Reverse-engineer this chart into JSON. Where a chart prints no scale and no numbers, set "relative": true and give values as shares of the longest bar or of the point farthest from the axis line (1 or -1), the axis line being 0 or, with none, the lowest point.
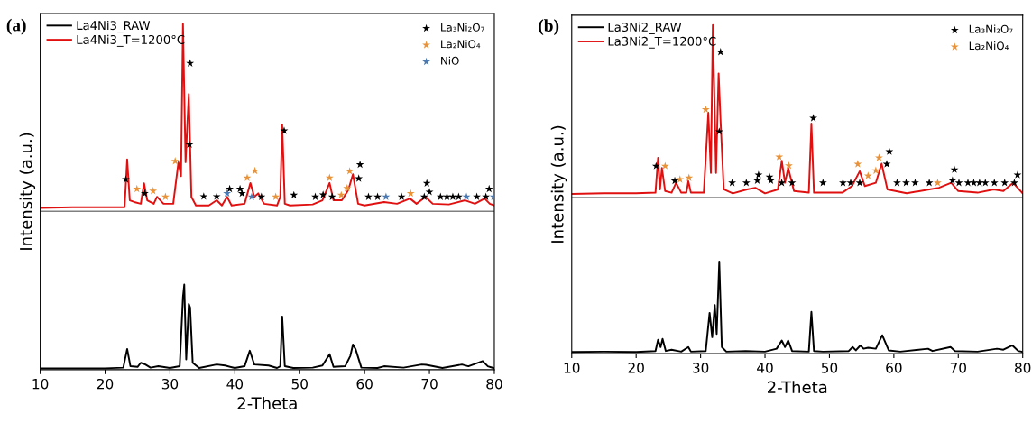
{
  "chart_data": [
    {
      "type": "line",
      "title": "(a)",
      "xlabel": "2-Theta",
      "ylabel": "Intensity (a.u.)",
      "relative": true,
      "xlim": [
        10,
        80
      ],
      "xticks": [
        10,
        20,
        30,
        40,
        50,
        60,
        70,
        80
      ],
      "tick_labels": "x",
      "legend": "top left",
      "grid": false,
      "ref_lines": [
        {
          "axis": "y",
          "value": 0.458,
          "color": "#808080"
        }
      ],
      "series": [
        {
          "name": "La4Ni3_RAW",
          "color": "#000000",
          "marker": "none",
          "x": [
            10,
            15,
            20,
            22.8,
            23.4,
            23.9,
            25.0,
            25.5,
            26.2,
            27,
            28.2,
            30,
            31.5,
            32.0,
            32.2,
            32.5,
            32.9,
            33.1,
            33.5,
            34.5,
            37.2,
            38.5,
            40,
            41.5,
            42.3,
            43,
            45.2,
            46.5,
            47.0,
            47.3,
            47.7,
            49,
            52,
            53.5,
            54.6,
            55.2,
            57,
            57.8,
            58.2,
            58.6,
            59.5,
            62,
            63,
            66,
            68.8,
            69.5,
            72,
            75,
            76,
            78.2,
            79,
            80
          ],
          "values": [
            0.004,
            0.004,
            0.004,
            0.006,
            0.06,
            0.01,
            0.008,
            0.02,
            0.015,
            0.006,
            0.01,
            0.005,
            0.01,
            0.21,
            0.246,
            0.03,
            0.19,
            0.18,
            0.02,
            0.005,
            0.015,
            0.012,
            0.005,
            0.01,
            0.055,
            0.015,
            0.012,
            0.005,
            0.01,
            0.154,
            0.01,
            0.005,
            0.006,
            0.012,
            0.045,
            0.008,
            0.01,
            0.04,
            0.073,
            0.06,
            0.006,
            0.005,
            0.01,
            0.006,
            0.015,
            0.014,
            0.005,
            0.015,
            0.01,
            0.025,
            0.01,
            0.004
          ]
        },
        {
          "name": "La4Ni3_T=1200°C",
          "color": "#e01010",
          "marker": "none",
          "x": [
            10,
            15,
            20,
            23.0,
            23.4,
            23.8,
            24.5,
            25.5,
            26.0,
            26.5,
            27.5,
            28.0,
            29.0,
            30.5,
            31.3,
            31.7,
            32.0,
            32.4,
            32.9,
            33.3,
            34,
            36,
            37.2,
            38,
            38.8,
            39.5,
            41.5,
            42.4,
            43,
            43.6,
            44.5,
            46.5,
            47.0,
            47.3,
            47.7,
            48.5,
            52,
            53.5,
            54.6,
            55.2,
            56.5,
            57.5,
            58.2,
            59,
            60,
            63,
            65,
            67,
            68,
            69.4,
            70.5,
            73,
            75.5,
            77,
            78.5,
            79.3,
            80
          ],
          "values": [
            0.468,
            0.47,
            0.47,
            0.47,
            0.608,
            0.49,
            0.485,
            0.48,
            0.539,
            0.49,
            0.48,
            0.5,
            0.48,
            0.48,
            0.6,
            0.56,
            1.0,
            0.6,
            0.797,
            0.5,
            0.475,
            0.475,
            0.49,
            0.475,
            0.5,
            0.475,
            0.48,
            0.54,
            0.5,
            0.51,
            0.48,
            0.475,
            0.5,
            0.709,
            0.48,
            0.475,
            0.478,
            0.49,
            0.54,
            0.49,
            0.49,
            0.52,
            0.565,
            0.48,
            0.475,
            0.485,
            0.48,
            0.495,
            0.48,
            0.5,
            0.48,
            0.478,
            0.49,
            0.48,
            0.495,
            0.48,
            0.475
          ]
        },
        {
          "name": "La₃Ni₂O₇",
          "color": "#000000",
          "type": "scatter",
          "marker": "star",
          "x": [
            23.2,
            26.1,
            33.1,
            33.0,
            47.6,
            35.2,
            37.2,
            39.2,
            40.8,
            41.1,
            44.1,
            49.1,
            52.4,
            53.6,
            55.0,
            59.3,
            59.1,
            60.6,
            62.0,
            65.7,
            69.2,
            69.6,
            70.0,
            71.7,
            72.7,
            73.6,
            74.5,
            77.3,
            78.7,
            79.2
          ],
          "values": [
            0.55,
            0.51,
            0.886,
            0.651,
            0.691,
            0.501,
            0.501,
            0.523,
            0.523,
            0.51,
            0.5,
            0.505,
            0.5,
            0.506,
            0.5,
            0.593,
            0.553,
            0.5,
            0.5,
            0.5,
            0.5,
            0.539,
            0.514,
            0.5,
            0.5,
            0.5,
            0.5,
            0.5,
            0.5,
            0.523
          ]
        },
        {
          "name": "La₂NiO₄",
          "color": "#e8923a",
          "type": "scatter",
          "marker": "star",
          "x": [
            24.9,
            27.4,
            29.3,
            30.8,
            41.9,
            43.1,
            46.3,
            54.6,
            56.4,
            57.3,
            57.7,
            67.1
          ],
          "values": [
            0.523,
            0.517,
            0.5,
            0.603,
            0.555,
            0.575,
            0.5,
            0.555,
            0.505,
            0.525,
            0.574,
            0.51
          ]
        },
        {
          "name": "NiO",
          "color": "#4a78b0",
          "type": "scatter",
          "marker": "star",
          "x": [
            38.8,
            42.6,
            63.3,
            75.7,
            79.9
          ],
          "values": [
            0.51,
            0.5,
            0.5,
            0.5,
            0.5
          ]
        }
      ]
    },
    {
      "type": "line",
      "title": "(b)",
      "xlabel": "2-Theta",
      "ylabel": "Intensity (a.u.)",
      "relative": true,
      "xlim": [
        10,
        80
      ],
      "xticks": [
        10,
        20,
        30,
        40,
        50,
        60,
        70,
        80
      ],
      "tick_labels": "x",
      "legend": "top left",
      "grid": false,
      "ref_lines": [
        {
          "axis": "y",
          "value": 0.475,
          "color": "#808080"
        }
      ],
      "series": [
        {
          "name": "La3Ni2_RAW",
          "color": "#000000",
          "marker": "none",
          "x": [
            10,
            15,
            20,
            23.0,
            23.4,
            23.8,
            24.1,
            24.6,
            25.5,
            27,
            28.1,
            28.5,
            30.8,
            31.4,
            31.8,
            32.2,
            32.5,
            32.9,
            33.3,
            34,
            37,
            40,
            41.8,
            42.6,
            43.1,
            43.6,
            44.2,
            46.8,
            47.2,
            47.6,
            49,
            53,
            53.6,
            54.1,
            54.8,
            55.3,
            56,
            57.2,
            58.2,
            59.2,
            61,
            65.3,
            66,
            68.8,
            69.5,
            73,
            76,
            77,
            78.4,
            79.3,
            80
          ],
          "values": [
            0.005,
            0.006,
            0.005,
            0.008,
            0.042,
            0.02,
            0.045,
            0.008,
            0.012,
            0.006,
            0.02,
            0.006,
            0.008,
            0.124,
            0.05,
            0.148,
            0.06,
            0.28,
            0.02,
            0.006,
            0.008,
            0.006,
            0.015,
            0.04,
            0.02,
            0.04,
            0.008,
            0.006,
            0.127,
            0.008,
            0.006,
            0.008,
            0.02,
            0.01,
            0.025,
            0.015,
            0.018,
            0.015,
            0.056,
            0.01,
            0.006,
            0.015,
            0.008,
            0.02,
            0.008,
            0.006,
            0.015,
            0.012,
            0.025,
            0.008,
            0.005
          ]
        },
        {
          "name": "La3Ni2_T=1200°C",
          "color": "#e01010",
          "marker": "none",
          "x": [
            10,
            15,
            20,
            23.0,
            23.4,
            23.7,
            24.0,
            24.5,
            25.5,
            26.2,
            27,
            27.8,
            28.1,
            28.5,
            30.5,
            31.2,
            31.6,
            31.9,
            32.4,
            32.8,
            33.1,
            33.6,
            35,
            37.2,
            38.5,
            40,
            42.0,
            42.6,
            43.1,
            43.6,
            44.5,
            46.8,
            47.2,
            47.6,
            49,
            52,
            53.5,
            54.7,
            55.5,
            57.2,
            58.1,
            59,
            62,
            65.5,
            67,
            68.9,
            70,
            73,
            75.5,
            77,
            78.5,
            80
          ],
          "values": [
            0.486,
            0.488,
            0.488,
            0.49,
            0.596,
            0.5,
            0.565,
            0.495,
            0.49,
            0.52,
            0.49,
            0.49,
            0.525,
            0.49,
            0.49,
            0.733,
            0.55,
            1.0,
            0.55,
            0.853,
            0.71,
            0.5,
            0.488,
            0.5,
            0.505,
            0.488,
            0.5,
            0.587,
            0.52,
            0.565,
            0.495,
            0.49,
            0.7,
            0.49,
            0.49,
            0.49,
            0.51,
            0.555,
            0.51,
            0.52,
            0.578,
            0.5,
            0.488,
            0.5,
            0.505,
            0.52,
            0.495,
            0.49,
            0.5,
            0.495,
            0.52,
            0.488
          ]
        },
        {
          "name": "La₃Ni₂O₇",
          "color": "#000000",
          "type": "scatter",
          "marker": "star",
          "x": [
            23.1,
            26.0,
            33.1,
            32.9,
            47.5,
            34.9,
            37.1,
            38.8,
            39.0,
            40.7,
            40.9,
            42.6,
            44.2,
            49.0,
            52.1,
            53.3,
            54.7,
            59.3,
            58.9,
            60.5,
            61.9,
            63.3,
            65.5,
            69.4,
            69.1,
            70.1,
            71.5,
            72.4,
            73.3,
            74.2,
            75.6,
            77.2,
            78.7,
            79.2
          ],
          "values": [
            0.571,
            0.526,
            0.918,
            0.676,
            0.717,
            0.52,
            0.52,
            0.527,
            0.544,
            0.538,
            0.527,
            0.52,
            0.52,
            0.52,
            0.52,
            0.52,
            0.52,
            0.615,
            0.577,
            0.52,
            0.52,
            0.52,
            0.52,
            0.56,
            0.527,
            0.52,
            0.52,
            0.52,
            0.52,
            0.52,
            0.52,
            0.52,
            0.52,
            0.544
          ]
        },
        {
          "name": "La₂NiO₄",
          "color": "#e8923a",
          "type": "scatter",
          "marker": "star",
          "x": [
            24.5,
            26.8,
            28.2,
            30.8,
            42.2,
            43.7,
            54.4,
            56.0,
            57.2,
            57.7,
            66.8
          ],
          "values": [
            0.571,
            0.53,
            0.535,
            0.743,
            0.599,
            0.572,
            0.577,
            0.541,
            0.557,
            0.596,
            0.52
          ]
        }
      ]
    }
  ]
}
